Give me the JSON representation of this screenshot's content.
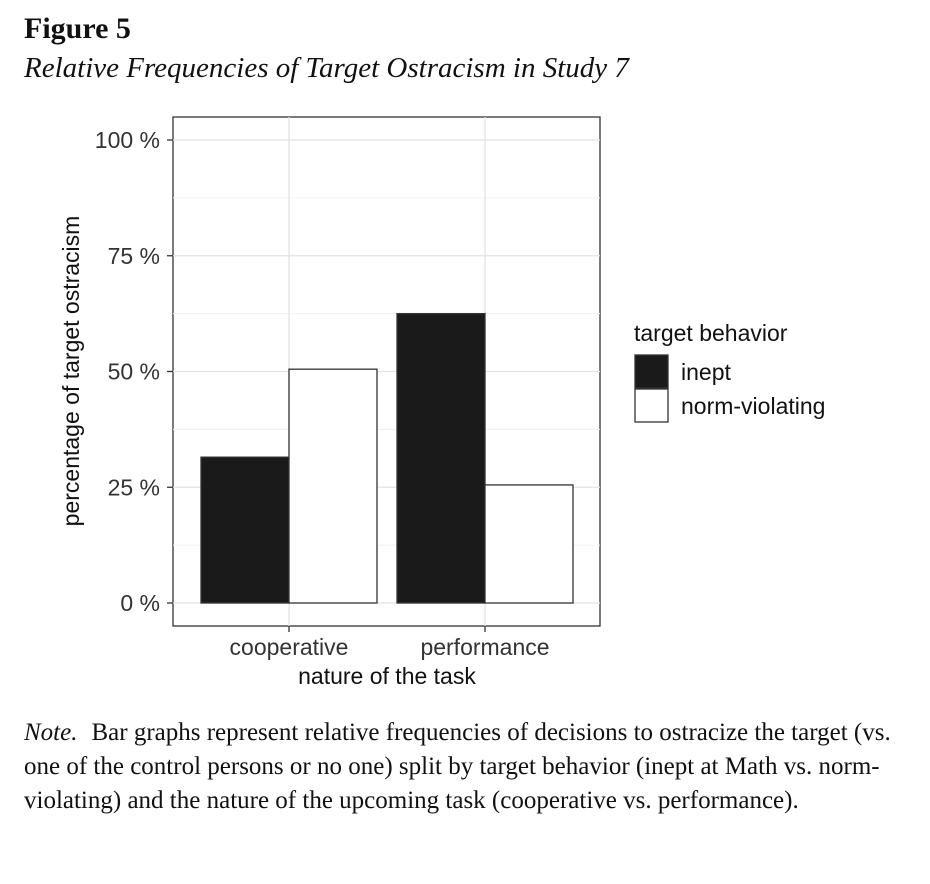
{
  "figure": {
    "label": "Figure 5",
    "title": "Relative Frequencies of Target Ostracism in Study 7"
  },
  "note": {
    "label": "Note.",
    "text": "Bar graphs represent relative frequencies of decisions to ostracize the target (vs. one of the control persons or no one) split by target behavior (inept at Math vs. norm-violating) and the nature of the upcoming task (cooperative vs. performance)."
  },
  "chart_data": {
    "type": "bar",
    "xlabel": "nature of the task",
    "ylabel": "percentage of target ostracism",
    "categories": [
      "cooperative",
      "performance"
    ],
    "ylim": [
      0,
      100
    ],
    "yticks": [
      0,
      25,
      50,
      75,
      100
    ],
    "ytick_labels": [
      "0 %",
      "25 %",
      "50 %",
      "75 %",
      "100 %"
    ],
    "grid": true,
    "legend": {
      "title": "target behavior",
      "placement": "right"
    },
    "series": [
      {
        "name": "inept",
        "color": "#1a1a1a",
        "values": [
          31.5,
          62.5
        ]
      },
      {
        "name": "norm-violating",
        "color": "#ffffff",
        "values": [
          50.5,
          25.5
        ]
      }
    ]
  }
}
